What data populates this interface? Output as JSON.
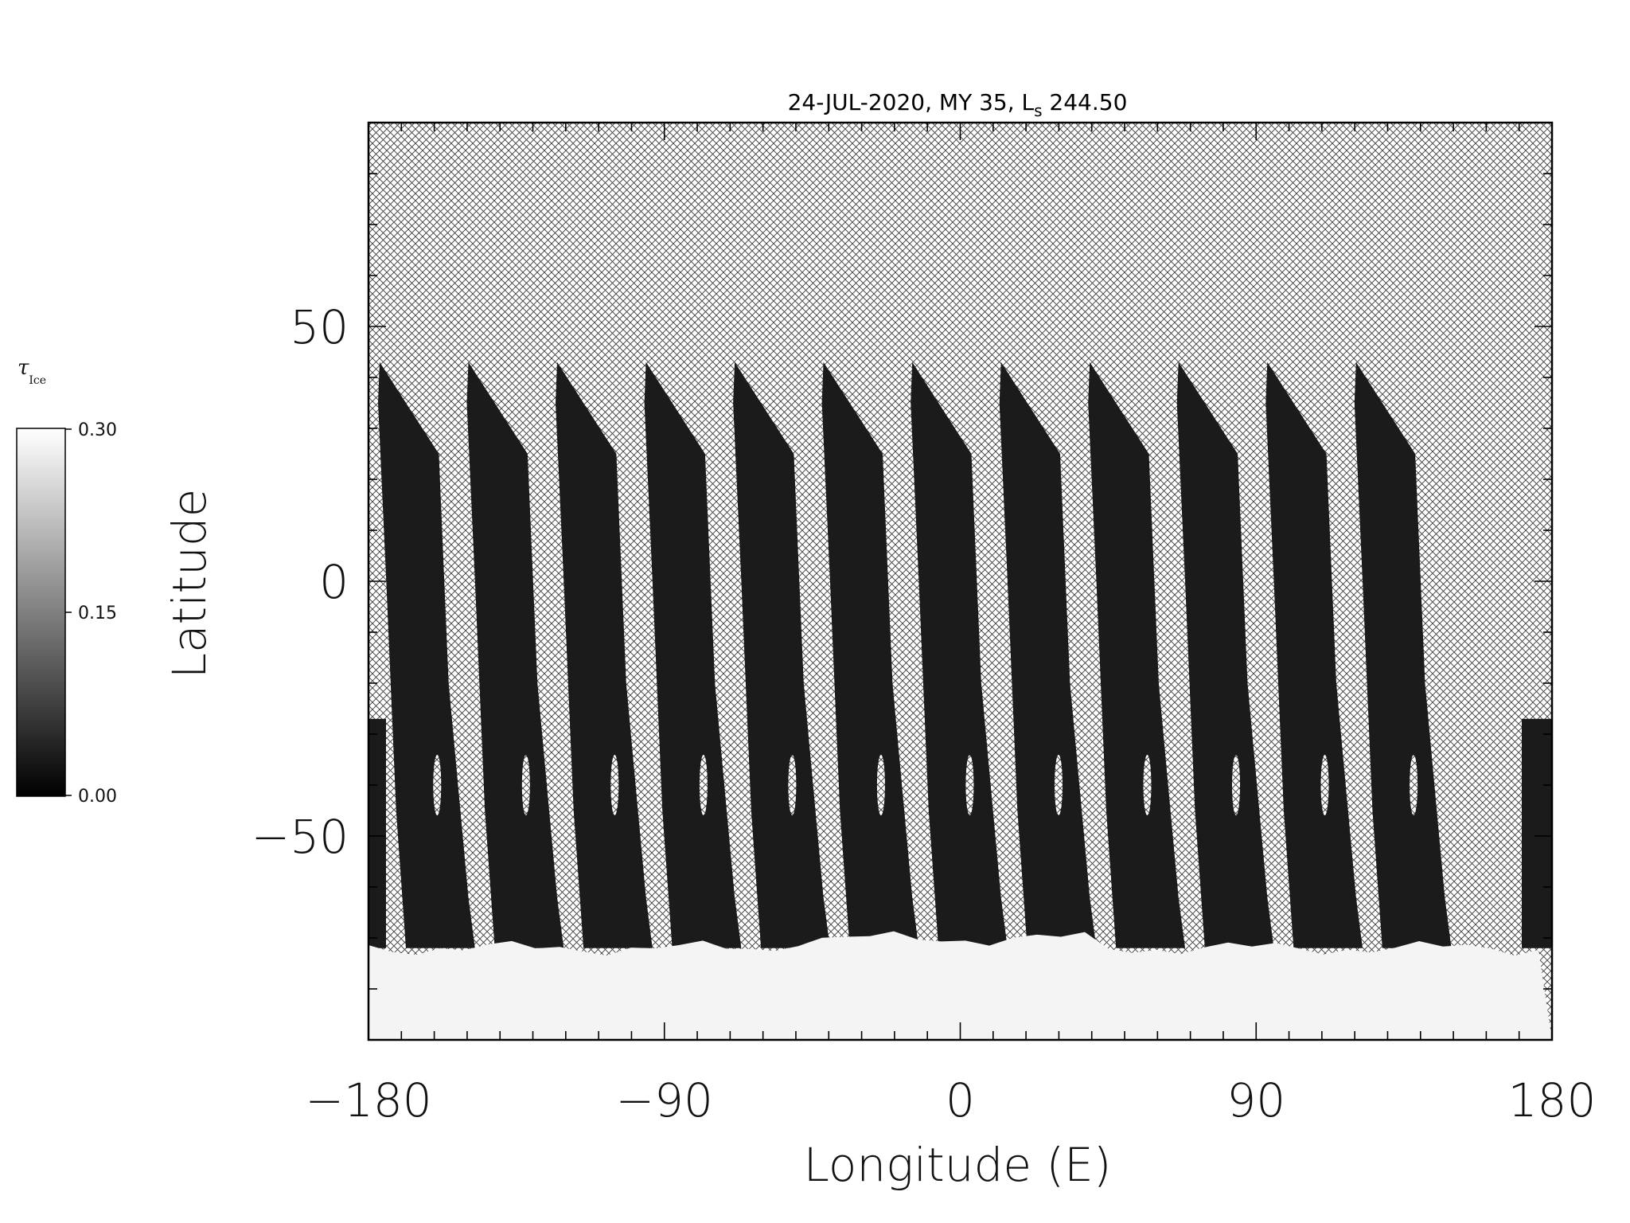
{
  "chart_data": {
    "type": "heatmap",
    "title": "24-JUL-2020, MY 35,  L",
    "title_sub": "s",
    "title_tail": " 244.50",
    "xlabel": "Longitude (E)",
    "ylabel": "Latitude",
    "xlim": [
      -180,
      180
    ],
    "ylim": [
      -90,
      90
    ],
    "xticks": [
      -180,
      -90,
      0,
      90,
      180
    ],
    "xtick_labels": [
      "−180",
      "−90",
      "0",
      "90",
      "180"
    ],
    "yticks": [
      -50,
      0,
      50
    ],
    "ytick_labels": [
      "−50",
      "0",
      "50"
    ],
    "no_data_fill": "crosshatch",
    "swath_start_longitudes": [
      -180,
      -153,
      -126,
      -99,
      -72,
      -45,
      -18,
      9,
      36,
      63,
      90,
      117
    ],
    "swath_lat_range": [
      -72,
      43
    ],
    "polar_ice_cap": {
      "lat_top": -72,
      "lat_bottom": -90,
      "value": 0.3
    },
    "colorbar": {
      "symbol": "τ",
      "symbol_sub": "Ice",
      "min_label": "0.00",
      "mid_label": "0.15",
      "max_label": "0.30",
      "range": [
        0.0,
        0.3
      ],
      "colors": [
        "#000000",
        "#ffffff"
      ]
    }
  }
}
